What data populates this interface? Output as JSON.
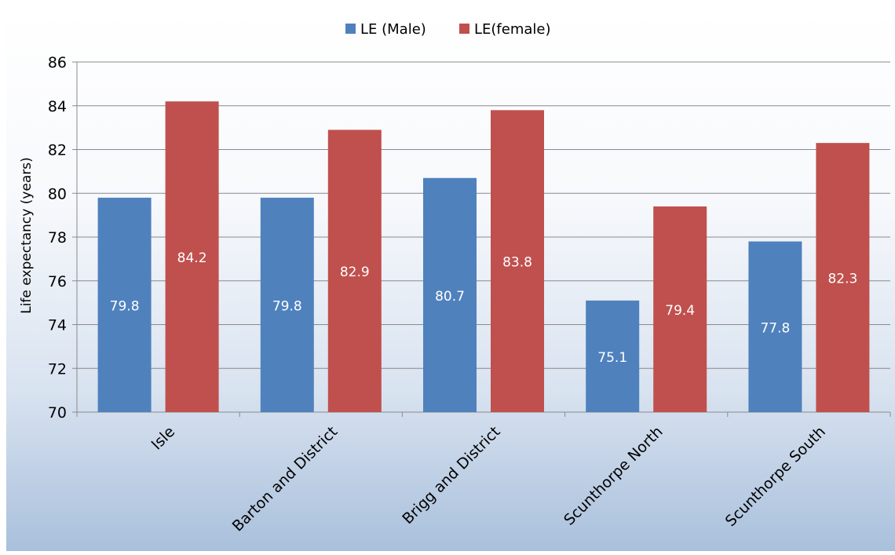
{
  "chart_data": {
    "type": "bar",
    "title": "",
    "xlabel": "",
    "ylabel": "Life expectancy (years)",
    "ylim": [
      70,
      86
    ],
    "yticks": [
      "70",
      "72",
      "74",
      "76",
      "78",
      "80",
      "82",
      "84",
      "86"
    ],
    "grid": true,
    "legend_position": "top",
    "categories": [
      "Isle",
      "Barton and District",
      "Brigg and District",
      "Scunthorpe North",
      "Scunthorpe South"
    ],
    "series": [
      {
        "name": "LE (Male)",
        "color": "#4f81bd",
        "values": [
          79.8,
          79.8,
          80.7,
          75.1,
          77.8
        ],
        "labels": [
          "79.8",
          "79.8",
          "80.7",
          "75.1",
          "77.8"
        ]
      },
      {
        "name": "LE(female)",
        "color": "#c0504d",
        "values": [
          84.2,
          82.9,
          83.8,
          79.4,
          82.3
        ],
        "labels": [
          "84.2",
          "82.9",
          "83.8",
          "79.4",
          "82.3"
        ]
      }
    ]
  }
}
